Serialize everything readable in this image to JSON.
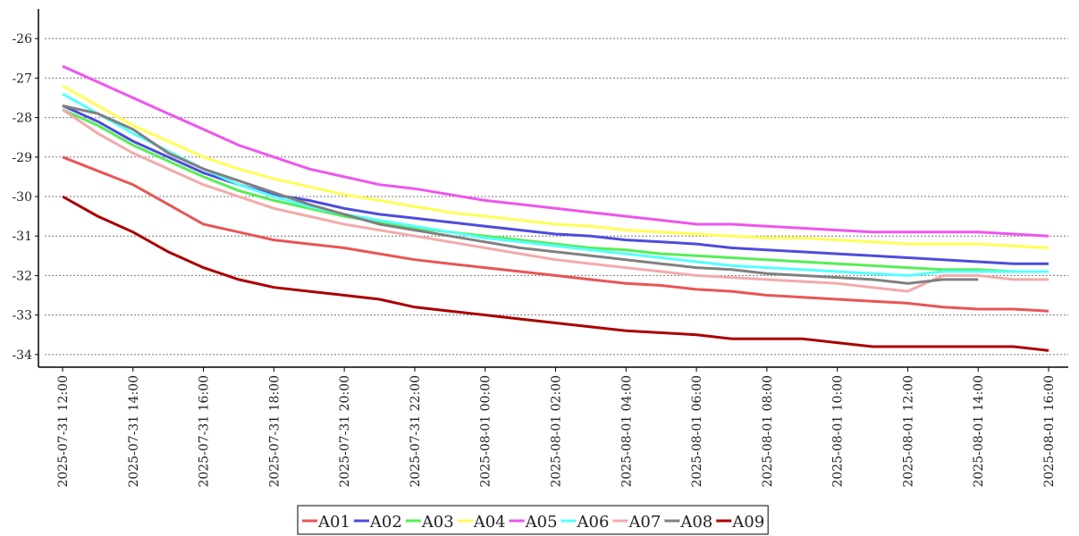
{
  "chart_data": {
    "type": "line",
    "x": [
      "2025-07-31 12:00",
      "2025-07-31 13:00",
      "2025-07-31 14:00",
      "2025-07-31 15:00",
      "2025-07-31 16:00",
      "2025-07-31 17:00",
      "2025-07-31 18:00",
      "2025-07-31 19:00",
      "2025-07-31 20:00",
      "2025-07-31 21:00",
      "2025-07-31 22:00",
      "2025-07-31 23:00",
      "2025-08-01 00:00",
      "2025-08-01 01:00",
      "2025-08-01 02:00",
      "2025-08-01 03:00",
      "2025-08-01 04:00",
      "2025-08-01 05:00",
      "2025-08-01 06:00",
      "2025-08-01 07:00",
      "2025-08-01 08:00",
      "2025-08-01 09:00",
      "2025-08-01 10:00",
      "2025-08-01 11:00",
      "2025-08-01 12:00",
      "2025-08-01 13:00",
      "2025-08-01 14:00",
      "2025-08-01 15:00",
      "2025-08-01 16:00"
    ],
    "xticks": [
      "2025-07-31 12:00",
      "2025-07-31 14:00",
      "2025-07-31 16:00",
      "2025-07-31 18:00",
      "2025-07-31 20:00",
      "2025-07-31 22:00",
      "2025-08-01 00:00",
      "2025-08-01 02:00",
      "2025-08-01 04:00",
      "2025-08-01 06:00",
      "2025-08-01 08:00",
      "2025-08-01 10:00",
      "2025-08-01 12:00",
      "2025-08-01 14:00",
      "2025-08-01 16:00"
    ],
    "ylim": [
      -34.32,
      -25.25
    ],
    "yticks": [
      -26,
      -27,
      -28,
      -29,
      -30,
      -31,
      -32,
      -33,
      -34
    ],
    "grid": true,
    "legend": "bottom",
    "series": [
      {
        "name": "A01",
        "color": "#e85555",
        "values": [
          -29.0,
          -29.35,
          -29.7,
          -30.2,
          -30.7,
          -30.9,
          -31.1,
          -31.2,
          -31.3,
          -31.45,
          -31.6,
          -31.7,
          -31.8,
          -31.9,
          -32.0,
          -32.1,
          -32.2,
          -32.25,
          -32.35,
          -32.4,
          -32.5,
          -32.55,
          -32.6,
          -32.65,
          -32.7,
          -32.8,
          -32.85,
          -32.85,
          -32.9
        ]
      },
      {
        "name": "A02",
        "color": "#4c4cdd",
        "values": [
          -27.7,
          -28.1,
          -28.6,
          -29.0,
          -29.4,
          -29.7,
          -29.95,
          -30.1,
          -30.3,
          -30.45,
          -30.55,
          -30.65,
          -30.75,
          -30.85,
          -30.95,
          -31.0,
          -31.1,
          -31.15,
          -31.2,
          -31.3,
          -31.35,
          -31.4,
          -31.45,
          -31.5,
          -31.55,
          -31.6,
          -31.65,
          -31.7,
          -31.7
        ]
      },
      {
        "name": "A03",
        "color": "#55ee55",
        "values": [
          -27.8,
          -28.2,
          -28.7,
          -29.1,
          -29.5,
          -29.85,
          -30.1,
          -30.3,
          -30.5,
          -30.65,
          -30.8,
          -30.9,
          -31.0,
          -31.1,
          -31.2,
          -31.3,
          -31.35,
          -31.45,
          -31.5,
          -31.55,
          -31.6,
          -31.65,
          -31.7,
          -31.75,
          -31.8,
          -31.85,
          -31.85,
          -31.9,
          -31.9
        ]
      },
      {
        "name": "A04",
        "color": "#ffff55",
        "values": [
          -27.2,
          -27.7,
          -28.2,
          -28.6,
          -29.0,
          -29.3,
          -29.55,
          -29.75,
          -29.95,
          -30.1,
          -30.25,
          -30.4,
          -30.5,
          -30.6,
          -30.7,
          -30.75,
          -30.85,
          -30.9,
          -30.95,
          -31.0,
          -31.05,
          -31.05,
          -31.1,
          -31.15,
          -31.2,
          -31.2,
          -31.2,
          -31.25,
          -31.3
        ]
      },
      {
        "name": "A05",
        "color": "#ee55ee",
        "values": [
          -26.7,
          -27.1,
          -27.5,
          -27.9,
          -28.3,
          -28.7,
          -29.0,
          -29.3,
          -29.5,
          -29.7,
          -29.8,
          -29.95,
          -30.1,
          -30.2,
          -30.3,
          -30.4,
          -30.5,
          -30.6,
          -30.7,
          -30.7,
          -30.75,
          -30.8,
          -30.85,
          -30.9,
          -30.9,
          -30.9,
          -30.9,
          -30.95,
          -31.0
        ]
      },
      {
        "name": "A06",
        "color": "#55ffff",
        "values": [
          -27.4,
          -27.9,
          -28.4,
          -28.85,
          -29.3,
          -29.7,
          -30.0,
          -30.25,
          -30.45,
          -30.6,
          -30.75,
          -30.9,
          -31.05,
          -31.15,
          -31.25,
          -31.35,
          -31.45,
          -31.55,
          -31.65,
          -31.75,
          -31.8,
          -31.85,
          -31.9,
          -31.95,
          -32.0,
          -31.9,
          -31.9,
          -31.9,
          -31.9
        ]
      },
      {
        "name": "A07",
        "color": "#f4aaaa",
        "values": [
          -27.8,
          -28.4,
          -28.9,
          -29.3,
          -29.7,
          -30.0,
          -30.3,
          -30.5,
          -30.7,
          -30.85,
          -31.0,
          -31.15,
          -31.3,
          -31.45,
          -31.6,
          -31.7,
          -31.8,
          -31.9,
          -32.0,
          -32.05,
          -32.1,
          -32.15,
          -32.2,
          -32.3,
          -32.4,
          -32.0,
          -32.0,
          -32.1,
          -32.1
        ]
      },
      {
        "name": "A08",
        "color": "#808080",
        "values": [
          -27.7,
          -27.9,
          -28.3,
          -28.9,
          -29.3,
          -29.6,
          -29.9,
          -30.2,
          -30.45,
          -30.7,
          -30.85,
          -31.0,
          -31.15,
          -31.3,
          -31.4,
          -31.5,
          -31.6,
          -31.7,
          -31.8,
          -31.85,
          -31.95,
          -32.0,
          -32.05,
          -32.1,
          -32.2,
          -32.1,
          -32.1,
          null,
          null
        ]
      },
      {
        "name": "A09",
        "color": "#aa0000",
        "values": [
          -30.0,
          -30.5,
          -30.9,
          -31.4,
          -31.8,
          -32.1,
          -32.3,
          -32.4,
          -32.5,
          -32.6,
          -32.8,
          -32.9,
          -33.0,
          -33.1,
          -33.2,
          -33.3,
          -33.4,
          -33.45,
          -33.5,
          -33.6,
          -33.6,
          -33.6,
          -33.7,
          -33.8,
          -33.8,
          -33.8,
          -33.8,
          -33.8,
          -33.9
        ]
      }
    ]
  }
}
